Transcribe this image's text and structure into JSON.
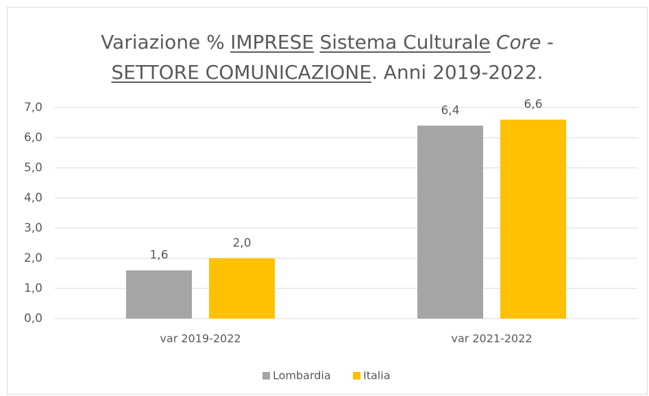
{
  "chart_data": {
    "type": "bar",
    "title": [
      [
        "Variazione %",
        "IMPRESE",
        "Sistema Culturale",
        "Core",
        "-"
      ],
      [
        "SETTORE COMUNICAZIONE",
        ". Anni 2019-2022."
      ]
    ],
    "categories": [
      "var 2019-2022",
      "var 2021-2022"
    ],
    "series": [
      {
        "name": "Lombardia",
        "color": "#a5a5a5",
        "values": [
          1.6,
          6.4
        ],
        "value_labels": [
          "1,6",
          "6,4"
        ]
      },
      {
        "name": "Italia",
        "color": "#ffc000",
        "values": [
          2.0,
          6.6
        ],
        "value_labels": [
          "2,0",
          "6,6"
        ]
      }
    ],
    "ylim": [
      0,
      7
    ],
    "yticks": [
      {
        "value": 0,
        "label": "0,0"
      },
      {
        "value": 1,
        "label": "1,0"
      },
      {
        "value": 2,
        "label": "2,0"
      },
      {
        "value": 3,
        "label": "3,0"
      },
      {
        "value": 4,
        "label": "4,0"
      },
      {
        "value": 5,
        "label": "5,0"
      },
      {
        "value": 6,
        "label": "6,0"
      },
      {
        "value": 7,
        "label": "7,0"
      }
    ],
    "grid": true,
    "legend": "bottom"
  }
}
